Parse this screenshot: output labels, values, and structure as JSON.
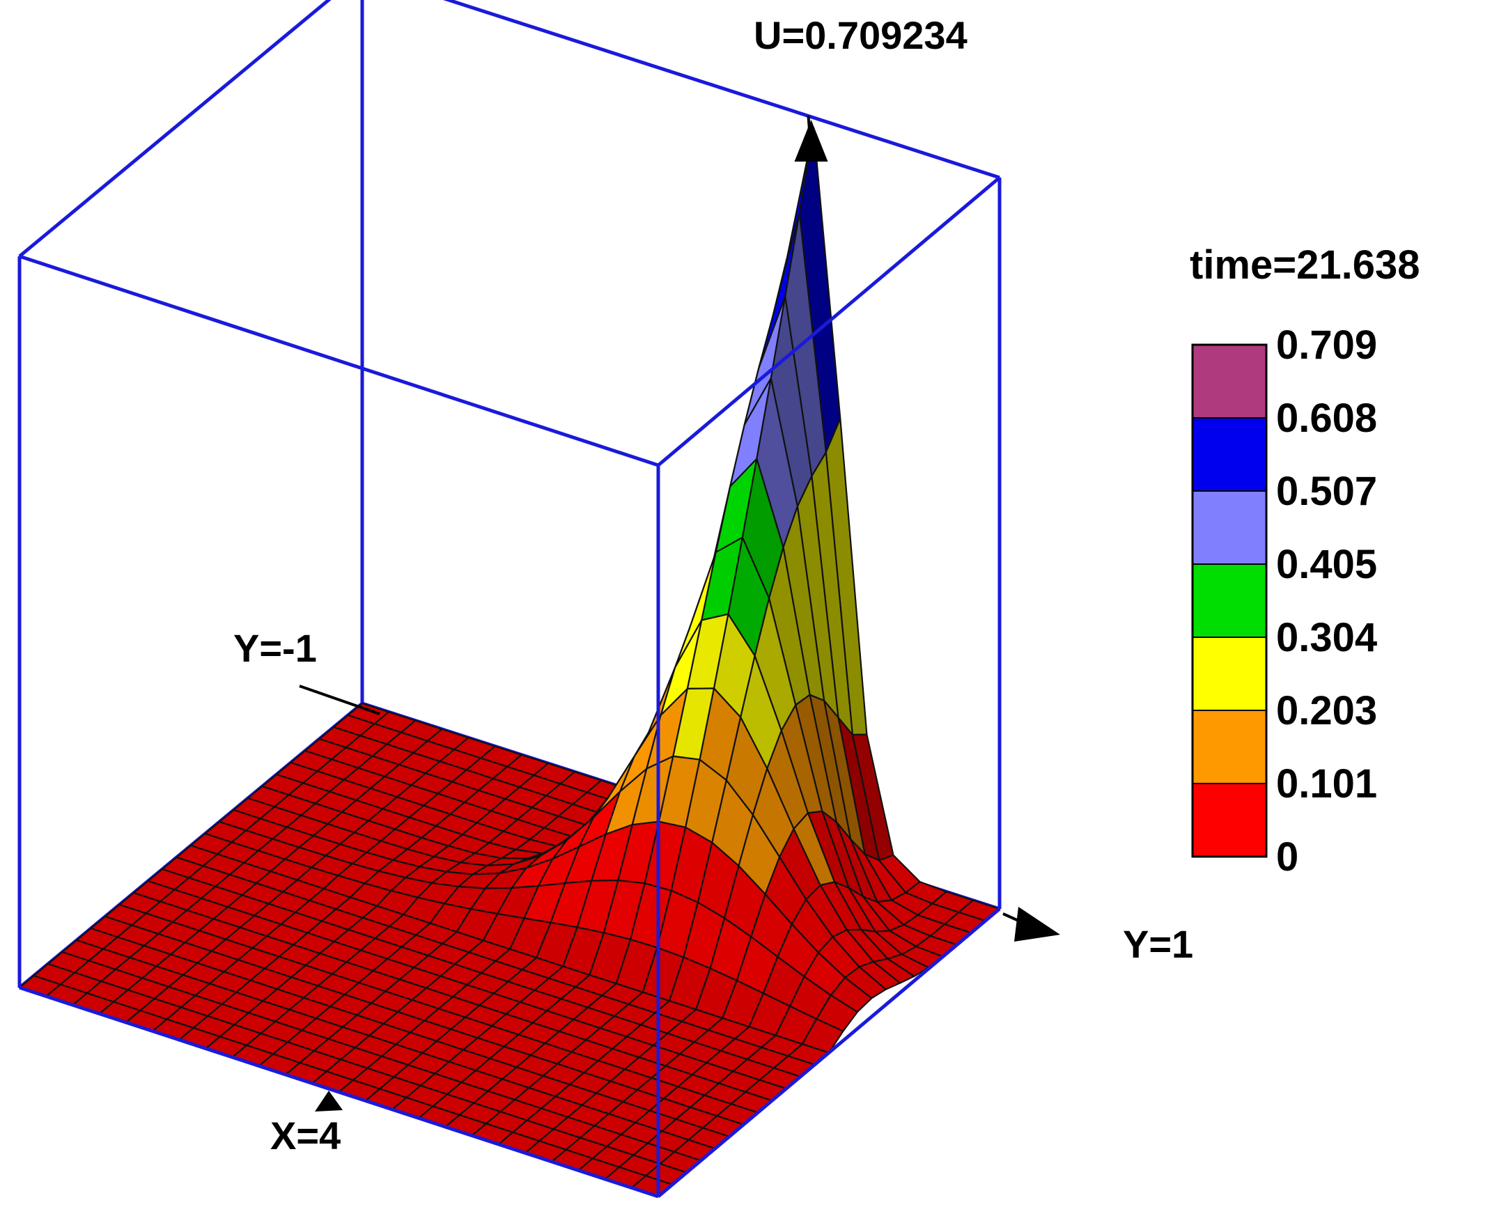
{
  "chart_data": {
    "type": "surface",
    "title": "U=0.709234",
    "time_label": "time=21.638",
    "axis_labels": {
      "y_min": "Y=-1",
      "y_max": "Y=1",
      "x_max": "X=4"
    },
    "x_range": [
      0,
      4
    ],
    "y_range": [
      -1,
      1
    ],
    "z_range": [
      0,
      0.709234
    ],
    "peak_value": 0.709234,
    "grid": true,
    "legend_position": "right",
    "colorbar": {
      "ticks": [
        "0.709",
        "0.608",
        "0.507",
        "0.405",
        "0.304",
        "0.203",
        "0.101",
        "0"
      ],
      "levels": [
        0,
        0.101,
        0.203,
        0.304,
        0.405,
        0.507,
        0.608,
        0.709
      ],
      "colors": [
        "#ff0000",
        "#ff9900",
        "#ffff00",
        "#00dd00",
        "#8080ff",
        "#0000ee",
        "#b03a7e"
      ]
    },
    "box_color": "#1a1adb",
    "base_color": "#cc0000"
  }
}
